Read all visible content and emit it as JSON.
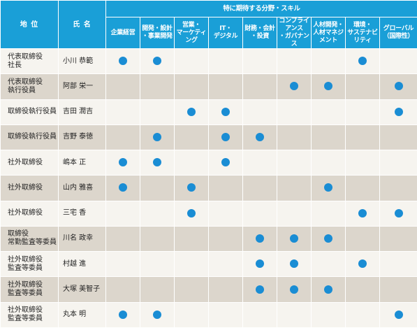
{
  "headers": {
    "position": "地 位",
    "name": "氏 名",
    "skills_group": "特に期待する分野・スキル"
  },
  "skills": [
    [
      "企業経営"
    ],
    [
      "開発・設計",
      "・事業開発"
    ],
    [
      "営業・",
      "マーケティング"
    ],
    [
      "IT・",
      "デジタル"
    ],
    [
      "財務・会計",
      "・投資"
    ],
    [
      "コンプライアンス",
      "・ガバナンス"
    ],
    [
      "人材開発・",
      "人材マネジメント"
    ],
    [
      "環境・",
      "サステナビリティ"
    ],
    [
      "グローバル",
      "（国際性）"
    ]
  ],
  "colors": {
    "header": "#1a9fd7",
    "dot": "#1a8dd4",
    "row_light": "#f6f4ef",
    "row_dark": "#dcd6cc"
  },
  "rows": [
    {
      "position": [
        "代表取締役",
        "社長"
      ],
      "name": "小川 恭範",
      "skills": [
        true,
        true,
        false,
        false,
        false,
        false,
        false,
        true,
        false
      ]
    },
    {
      "position": [
        "代表取締役",
        "執行役員"
      ],
      "name": "阿部 栄一",
      "skills": [
        false,
        false,
        false,
        false,
        false,
        true,
        true,
        false,
        true
      ]
    },
    {
      "position": [
        "取締役執行役員"
      ],
      "name": "吉田 潤吉",
      "skills": [
        false,
        false,
        true,
        true,
        false,
        false,
        false,
        false,
        true
      ]
    },
    {
      "position": [
        "取締役執行役員"
      ],
      "name": "吉野 泰徳",
      "skills": [
        false,
        true,
        false,
        true,
        true,
        false,
        false,
        false,
        false
      ]
    },
    {
      "position": [
        "社外取締役"
      ],
      "name": "嶋本 正",
      "skills": [
        true,
        true,
        false,
        true,
        false,
        false,
        false,
        false,
        false
      ]
    },
    {
      "position": [
        "社外取締役"
      ],
      "name": "山内 雅喜",
      "skills": [
        true,
        false,
        true,
        false,
        false,
        false,
        true,
        false,
        false
      ]
    },
    {
      "position": [
        "社外取締役"
      ],
      "name": "三宅 香",
      "skills": [
        false,
        false,
        true,
        false,
        false,
        false,
        false,
        true,
        true
      ]
    },
    {
      "position": [
        "取締役",
        "常勤監査等委員"
      ],
      "name": "川名 政幸",
      "skills": [
        false,
        false,
        false,
        false,
        true,
        true,
        true,
        false,
        false
      ]
    },
    {
      "position": [
        "社外取締役",
        "監査等委員"
      ],
      "name": "村越 進",
      "skills": [
        false,
        false,
        false,
        false,
        true,
        true,
        false,
        true,
        false
      ]
    },
    {
      "position": [
        "社外取締役",
        "監査等委員"
      ],
      "name": "大塚 美智子",
      "skills": [
        false,
        false,
        false,
        false,
        true,
        true,
        true,
        false,
        false
      ]
    },
    {
      "position": [
        "社外取締役",
        "監査等委員"
      ],
      "name": "丸本 明",
      "skills": [
        true,
        true,
        false,
        false,
        false,
        false,
        false,
        false,
        true
      ]
    }
  ]
}
